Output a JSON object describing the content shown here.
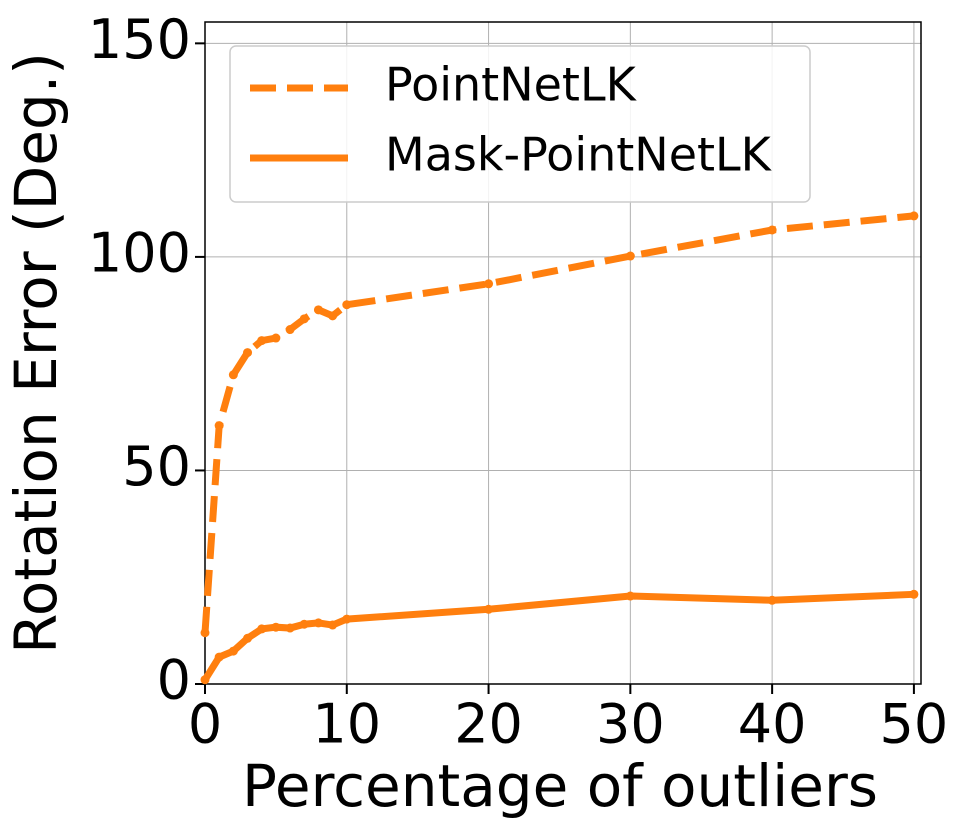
{
  "chart_data": {
    "type": "line",
    "xlabel": "Percentage of outliers",
    "ylabel": "Rotation Error (Deg.)",
    "x": [
      0,
      1,
      2,
      3,
      4,
      5,
      6,
      7,
      8,
      9,
      10,
      20,
      30,
      40,
      50
    ],
    "series": [
      {
        "name": "PointNetLK",
        "color": "#ff7f0e",
        "dash": true,
        "values": [
          12,
          60.5,
          72.4,
          77.6,
          80.4,
          81,
          83,
          85.5,
          87.6,
          86.2,
          88.8,
          93.7,
          100.2,
          106.3,
          109.6
        ]
      },
      {
        "name": "Mask-PointNetLK",
        "color": "#ff7f0e",
        "dash": false,
        "values": [
          1,
          6.3,
          7.7,
          10.7,
          12.9,
          13.3,
          13.1,
          14,
          14.3,
          13.8,
          15.2,
          17.5,
          20.6,
          19.6,
          21
        ]
      }
    ],
    "xlim": [
      0,
      50.5
    ],
    "ylim": [
      0,
      155
    ],
    "xticks": [
      0,
      10,
      20,
      30,
      40,
      50
    ],
    "yticks": [
      0,
      50,
      100,
      150
    ],
    "grid": true,
    "legend": "upper-left"
  }
}
